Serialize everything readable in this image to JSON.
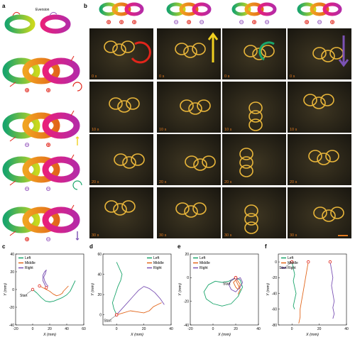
{
  "panels": {
    "a": "a",
    "b": "b",
    "c": "c",
    "d": "d",
    "e": "e",
    "f": "f"
  },
  "eversion_title": "Eversion",
  "colors": {
    "left": "#1aa56b",
    "middle": "#e2661b",
    "right": "#7b52b4",
    "start_marker": "#e1251b",
    "pos_sym": "#e1251b",
    "neg_sym": "#9b5fc0"
  },
  "b_headers": [
    {
      "symbols": [
        "⊕",
        "⊕",
        "⊕"
      ],
      "arrow": "cw-arrow"
    },
    {
      "symbols": [
        "⊖",
        "⊕",
        "⊖"
      ],
      "arrow": "up-arrow"
    },
    {
      "symbols": [
        "⊖",
        "⊕",
        "⊖"
      ],
      "arrow": "ccw-arrow"
    },
    {
      "symbols": [
        "⊕",
        "⊖",
        "⊕"
      ],
      "arrow": "down-arrow"
    }
  ],
  "time_labels": [
    "0 s",
    "10 s",
    "20 s",
    "30 s"
  ],
  "a_rows": [
    {
      "symbols": [
        "⊕",
        "⊕"
      ],
      "arrow": "cw-arrow"
    },
    {
      "symbols": [
        "⊖",
        "⊕"
      ],
      "arrow": "up-arrow"
    },
    {
      "symbols": [
        "⊖",
        "⊖"
      ],
      "arrow": "ccw-arrow"
    },
    {
      "symbols": [
        "⊕",
        "⊖"
      ],
      "arrow": "down-arrow"
    }
  ],
  "chart_data": [
    {
      "panel": "c",
      "type": "line",
      "xlabel": "X (mm)",
      "ylabel": "Y (mm)",
      "xlim": [
        -20,
        60
      ],
      "ylim": [
        -40,
        40
      ],
      "xticks": [
        -20,
        0,
        20,
        40,
        60
      ],
      "yticks": [
        -40,
        -20,
        0,
        20,
        40
      ],
      "legend": "top-left",
      "annotation": "Start",
      "series": [
        {
          "name": "Left",
          "x": [
            0,
            5,
            10,
            15,
            20,
            25,
            30,
            35,
            40,
            44,
            46,
            48,
            50
          ],
          "y": [
            0,
            -4,
            -9,
            -13,
            -14,
            -13,
            -11,
            -9,
            -6,
            -2,
            2,
            6,
            10
          ]
        },
        {
          "name": "Middle",
          "x": [
            8,
            12,
            16,
            20,
            24,
            28,
            32,
            35,
            36,
            38,
            40,
            42
          ],
          "y": [
            4,
            2,
            0,
            -2,
            -5,
            -7,
            -6,
            -4,
            -2,
            0,
            2,
            4
          ]
        },
        {
          "name": "Right",
          "x": [
            16,
            14,
            12,
            12,
            14,
            16,
            15,
            13,
            14,
            16,
            18,
            16
          ],
          "y": [
            2,
            6,
            10,
            16,
            20,
            22,
            18,
            14,
            10,
            6,
            4,
            2
          ]
        }
      ]
    },
    {
      "panel": "d",
      "type": "line",
      "xlabel": "X (mm)",
      "ylabel": "Y (mm)",
      "xlim": [
        -10,
        40
      ],
      "ylim": [
        -10,
        60
      ],
      "xticks": [
        0,
        20,
        40
      ],
      "yticks": [
        0,
        20,
        40,
        60
      ],
      "legend": "top-right",
      "annotation": "Start",
      "series": [
        {
          "name": "Left",
          "x": [
            0,
            -2,
            -3,
            -1,
            1,
            3,
            4,
            2,
            0
          ],
          "y": [
            0,
            6,
            12,
            20,
            28,
            34,
            40,
            46,
            52
          ]
        },
        {
          "name": "Middle",
          "x": [
            0,
            5,
            10,
            15,
            20,
            24,
            27,
            30,
            33
          ],
          "y": [
            0,
            2,
            4,
            3,
            2,
            4,
            8,
            10,
            12
          ]
        },
        {
          "name": "Right",
          "x": [
            0,
            4,
            8,
            12,
            16,
            20,
            24,
            28,
            32,
            35
          ],
          "y": [
            0,
            6,
            12,
            18,
            24,
            28,
            26,
            22,
            16,
            10
          ]
        }
      ]
    },
    {
      "panel": "e",
      "type": "line",
      "xlabel": "X (mm)",
      "ylabel": "Y (mm)",
      "xlim": [
        -20,
        40
      ],
      "ylim": [
        -40,
        20
      ],
      "xticks": [
        -20,
        0,
        20,
        40
      ],
      "yticks": [
        -40,
        -20,
        0,
        20
      ],
      "legend": "top-left",
      "annotation": "Start",
      "series": [
        {
          "name": "Left",
          "x": [
            20,
            14,
            8,
            2,
            -4,
            -8,
            -6,
            0,
            8,
            16,
            22,
            26,
            24,
            20
          ],
          "y": [
            0,
            -3,
            -4,
            -3,
            -6,
            -12,
            -18,
            -22,
            -24,
            -22,
            -16,
            -8,
            -2,
            0
          ]
        },
        {
          "name": "Middle",
          "x": [
            20,
            22,
            24,
            22,
            20,
            18,
            20,
            22,
            24,
            22
          ],
          "y": [
            0,
            -3,
            -6,
            -10,
            -8,
            -4,
            -2,
            -6,
            -10,
            -14
          ]
        },
        {
          "name": "Right",
          "x": [
            20,
            16,
            14,
            16,
            20,
            24,
            26,
            24,
            20
          ],
          "y": [
            0,
            -2,
            -6,
            -10,
            -12,
            -8,
            -4,
            0,
            -2
          ]
        }
      ]
    },
    {
      "panel": "f",
      "type": "line",
      "xlabel": "X (mm)",
      "ylabel": "Y (mm)",
      "xlim": [
        -10,
        40
      ],
      "ylim": [
        -80,
        10
      ],
      "xticks": [
        0,
        20,
        40
      ],
      "yticks": [
        -80,
        -60,
        -40,
        -20,
        0
      ],
      "legend": "top-left",
      "annotation": "Start",
      "series": [
        {
          "name": "Left",
          "x": [
            0,
            1,
            2,
            1,
            2,
            3,
            2,
            1,
            2
          ],
          "y": [
            0,
            -8,
            -16,
            -24,
            -32,
            -40,
            -48,
            -56,
            -60
          ]
        },
        {
          "name": "Middle",
          "x": [
            12,
            11,
            10,
            9,
            8,
            7,
            6,
            6,
            5
          ],
          "y": [
            0,
            -10,
            -20,
            -30,
            -40,
            -50,
            -60,
            -70,
            -78
          ]
        },
        {
          "name": "Right",
          "x": [
            28,
            29,
            30,
            29,
            30,
            31,
            30,
            31,
            30
          ],
          "y": [
            0,
            -10,
            -20,
            -30,
            -40,
            -50,
            -58,
            -66,
            -72
          ]
        }
      ]
    }
  ]
}
